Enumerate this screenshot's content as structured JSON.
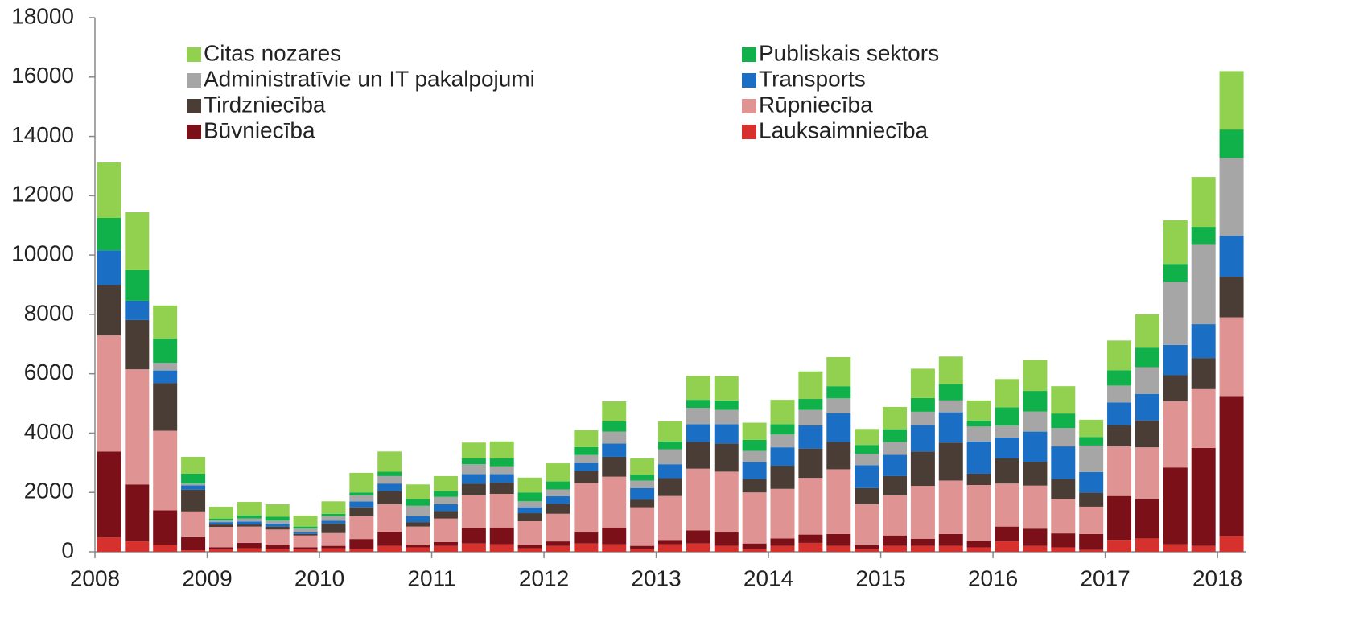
{
  "chart_data": {
    "type": "stacked_bar",
    "categories": [
      "2008",
      null,
      null,
      null,
      "2009",
      null,
      null,
      null,
      "2010",
      null,
      null,
      null,
      "2011",
      null,
      null,
      null,
      "2012",
      null,
      null,
      null,
      "2013",
      null,
      null,
      null,
      "2014",
      null,
      null,
      null,
      "2015",
      null,
      null,
      null,
      "2016",
      null,
      null,
      null,
      "2017",
      null,
      null,
      null,
      "2018"
    ],
    "ylim": [
      0,
      18000
    ],
    "yticks": [
      0,
      2000,
      4000,
      6000,
      8000,
      10000,
      12000,
      14000,
      16000,
      18000
    ],
    "legend": "top",
    "series": [
      {
        "name": "Lauksaimniecība",
        "color": "#d7312d",
        "values": [
          480,
          350,
          230,
          50,
          80,
          120,
          100,
          80,
          120,
          100,
          200,
          150,
          200,
          280,
          250,
          120,
          200,
          280,
          250,
          100,
          250,
          280,
          200,
          100,
          200,
          300,
          200,
          100,
          200,
          200,
          200,
          150,
          350,
          200,
          150,
          70,
          400,
          450,
          250,
          200,
          520
        ]
      },
      {
        "name": "Būvniecība",
        "color": "#7b1018",
        "values": [
          2900,
          1920,
          1170,
          440,
          70,
          180,
          150,
          70,
          80,
          330,
          480,
          100,
          130,
          520,
          570,
          110,
          150,
          370,
          570,
          100,
          150,
          440,
          450,
          180,
          250,
          280,
          400,
          120,
          350,
          240,
          400,
          220,
          500,
          580,
          470,
          530,
          1480,
          1320,
          2590,
          3300,
          4730
        ]
      },
      {
        "name": "Rūpniecība",
        "color": "#e09393",
        "values": [
          3910,
          3880,
          2680,
          870,
          690,
          550,
          500,
          400,
          430,
          770,
          920,
          600,
          790,
          1100,
          1130,
          800,
          930,
          1670,
          1710,
          1300,
          1480,
          2080,
          2050,
          1720,
          1670,
          1910,
          2180,
          1380,
          1350,
          1780,
          1800,
          1880,
          1450,
          1450,
          1160,
          920,
          1670,
          1750,
          2230,
          1980,
          2650
        ]
      },
      {
        "name": "Tirdzniecība",
        "color": "#4a3d35",
        "values": [
          1710,
          1660,
          1600,
          730,
          80,
          70,
          100,
          50,
          320,
          300,
          450,
          150,
          250,
          400,
          380,
          270,
          340,
          400,
          670,
          260,
          600,
          900,
          950,
          450,
          780,
          990,
          920,
          550,
          650,
          1160,
          1280,
          380,
          850,
          800,
          670,
          470,
          720,
          900,
          880,
          1050,
          1370
        ]
      },
      {
        "name": "Transports",
        "color": "#1a6fc4",
        "values": [
          1160,
          650,
          430,
          150,
          80,
          100,
          100,
          50,
          100,
          200,
          250,
          200,
          230,
          320,
          290,
          200,
          250,
          270,
          450,
          390,
          470,
          600,
          650,
          570,
          620,
          780,
          970,
          770,
          720,
          890,
          1020,
          1090,
          700,
          1020,
          1100,
          700,
          760,
          900,
          1020,
          1140,
          1380
        ]
      },
      {
        "name": "Administratīvie un IT pakalpojumi",
        "color": "#a6a6a6",
        "values": [
          0,
          0,
          260,
          60,
          60,
          100,
          100,
          130,
          150,
          200,
          250,
          350,
          250,
          330,
          260,
          200,
          230,
          270,
          400,
          250,
          500,
          550,
          480,
          380,
          430,
          520,
          500,
          380,
          430,
          450,
          400,
          500,
          400,
          680,
          620,
          890,
          570,
          900,
          2130,
          2700,
          2620
        ]
      },
      {
        "name": "Publiskais sektors",
        "color": "#10b04b",
        "values": [
          1090,
          1030,
          810,
          330,
          60,
          100,
          130,
          70,
          80,
          100,
          150,
          230,
          200,
          200,
          270,
          300,
          270,
          270,
          350,
          200,
          270,
          270,
          320,
          370,
          350,
          370,
          410,
          300,
          430,
          460,
          550,
          200,
          620,
          690,
          490,
          290,
          520,
          660,
          600,
          580,
          960
        ]
      },
      {
        "name": "Citas nozares",
        "color": "#92d050",
        "values": [
          1870,
          1950,
          1120,
          570,
          400,
          460,
          420,
          370,
          420,
          660,
          680,
          490,
          500,
          530,
          570,
          500,
          610,
          570,
          670,
          550,
          680,
          810,
          820,
          580,
          820,
          930,
          980,
          540,
          750,
          990,
          930,
          680,
          950,
          1040,
          920,
          580,
          1000,
          1120,
          1470,
          1680,
          1970
        ]
      }
    ]
  }
}
